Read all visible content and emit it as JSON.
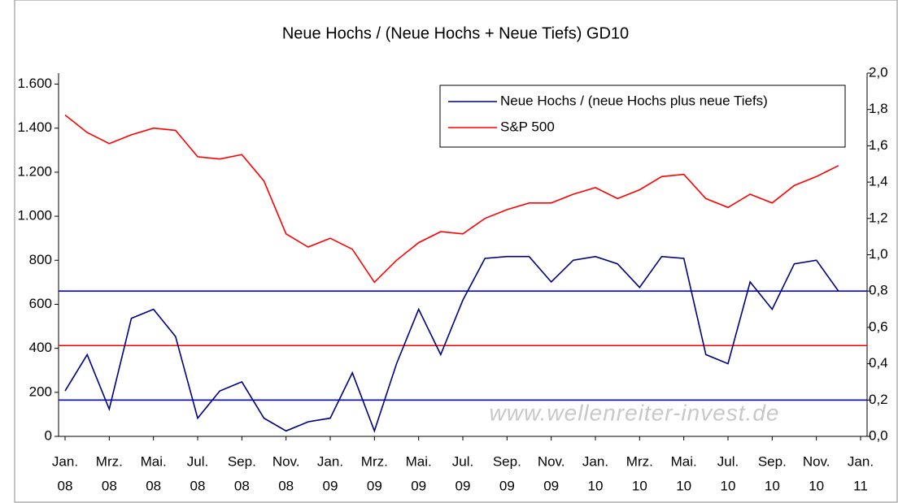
{
  "chart_data": {
    "type": "line",
    "title": "Neue Hochs / (Neue Hochs + Neue Tiefs) GD10",
    "x": [
      "2008-01",
      "2008-02",
      "2008-03",
      "2008-04",
      "2008-05",
      "2008-06",
      "2008-07",
      "2008-08",
      "2008-09",
      "2008-10",
      "2008-11",
      "2008-12",
      "2009-01",
      "2009-02",
      "2009-03",
      "2009-04",
      "2009-05",
      "2009-06",
      "2009-07",
      "2009-08",
      "2009-09",
      "2009-10",
      "2009-11",
      "2009-12",
      "2010-01",
      "2010-02",
      "2010-03",
      "2010-04",
      "2010-05",
      "2010-06",
      "2010-07",
      "2010-08",
      "2010-09",
      "2010-10",
      "2010-11",
      "2010-12"
    ],
    "xlim": [
      "2008-01",
      "2011-01"
    ],
    "xticks": [
      {
        "value": "2008-01",
        "label": "Jan.",
        "year": "08"
      },
      {
        "value": "2008-03",
        "label": "Mrz.",
        "year": "08"
      },
      {
        "value": "2008-05",
        "label": "Mai.",
        "year": "08"
      },
      {
        "value": "2008-07",
        "label": "Jul.",
        "year": "08"
      },
      {
        "value": "2008-09",
        "label": "Sep.",
        "year": "08"
      },
      {
        "value": "2008-11",
        "label": "Nov.",
        "year": "08"
      },
      {
        "value": "2009-01",
        "label": "Jan.",
        "year": "09"
      },
      {
        "value": "2009-03",
        "label": "Mrz.",
        "year": "09"
      },
      {
        "value": "2009-05",
        "label": "Mai.",
        "year": "09"
      },
      {
        "value": "2009-07",
        "label": "Jul.",
        "year": "09"
      },
      {
        "value": "2009-09",
        "label": "Sep.",
        "year": "09"
      },
      {
        "value": "2009-11",
        "label": "Nov.",
        "year": "09"
      },
      {
        "value": "2010-01",
        "label": "Jan.",
        "year": "10"
      },
      {
        "value": "2010-03",
        "label": "Mrz.",
        "year": "10"
      },
      {
        "value": "2010-05",
        "label": "Mai.",
        "year": "10"
      },
      {
        "value": "2010-07",
        "label": "Jul.",
        "year": "10"
      },
      {
        "value": "2010-09",
        "label": "Sep.",
        "year": "10"
      },
      {
        "value": "2010-11",
        "label": "Nov.",
        "year": "10"
      },
      {
        "value": "2011-01",
        "label": "Jan.",
        "year": "11"
      }
    ],
    "ylim": [
      0,
      1650
    ],
    "yticks": [
      0,
      {
        "value": 200,
        "label": "200"
      },
      {
        "value": 400,
        "label": "400"
      },
      {
        "value": 600,
        "label": "600"
      },
      {
        "value": 800,
        "label": "800"
      },
      {
        "value": 1000,
        "label": "1.000"
      },
      {
        "value": 1200,
        "label": "1.200"
      },
      {
        "value": 1400,
        "label": "1.400"
      },
      {
        "value": 1600,
        "label": "1.600"
      }
    ],
    "y2lim": [
      0,
      2
    ],
    "y2ticks": [
      {
        "value": 0,
        "label": "0,0"
      },
      {
        "value": 0.2,
        "label": "0,2"
      },
      {
        "value": 0.4,
        "label": "0,4"
      },
      {
        "value": 0.6,
        "label": "0,6"
      },
      {
        "value": 0.8,
        "label": "0,8"
      },
      {
        "value": 1.0,
        "label": "1,0"
      },
      {
        "value": 1.2,
        "label": "1,2"
      },
      {
        "value": 1.4,
        "label": "1,4"
      },
      {
        "value": 1.6,
        "label": "1,6"
      },
      {
        "value": 1.8,
        "label": "1,8"
      },
      {
        "value": 2.0,
        "label": "2,0"
      }
    ],
    "series": [
      {
        "name": "Neue Hochs / (neue Hochs plus neue Tiefs)",
        "color": "#000080",
        "axis": "y2",
        "values": [
          0.25,
          0.45,
          0.15,
          0.65,
          0.7,
          0.55,
          0.1,
          0.25,
          0.3,
          0.1,
          0.03,
          0.08,
          0.1,
          0.35,
          0.03,
          0.4,
          0.7,
          0.45,
          0.75,
          0.98,
          0.99,
          0.99,
          0.85,
          0.97,
          0.99,
          0.95,
          0.82,
          0.99,
          0.98,
          0.45,
          0.4,
          0.85,
          0.7,
          0.95,
          0.97,
          0.8
        ]
      },
      {
        "name": "S&P 500",
        "color": "#ff0000",
        "axis": "y",
        "values": [
          1460,
          1380,
          1330,
          1370,
          1400,
          1390,
          1270,
          1260,
          1280,
          1160,
          920,
          860,
          900,
          850,
          700,
          800,
          880,
          930,
          920,
          990,
          1030,
          1060,
          1060,
          1100,
          1130,
          1080,
          1120,
          1180,
          1190,
          1080,
          1040,
          1100,
          1060,
          1140,
          1180,
          1230
        ]
      }
    ],
    "hlines": [
      {
        "value": 0.8,
        "color": "#0000ff",
        "axis": "y2"
      },
      {
        "value": 0.5,
        "color": "#ff0000",
        "axis": "y2"
      },
      {
        "value": 0.2,
        "color": "#0000ff",
        "axis": "y2"
      }
    ],
    "legend": "upper right",
    "watermark": "www.wellenreiter-invest.de"
  }
}
